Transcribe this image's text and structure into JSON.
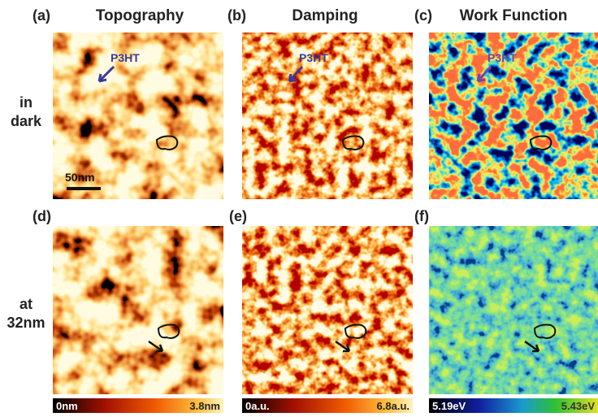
{
  "panels": [
    {
      "label": "(a)",
      "title": "Topography",
      "annotation": "P3HT",
      "scale_bar": "50nm"
    },
    {
      "label": "(b)",
      "title": "Damping",
      "annotation": "P3HT"
    },
    {
      "label": "(c)",
      "title": "Work Function",
      "annotation": "P3HT"
    },
    {
      "label": "(d)"
    },
    {
      "label": "(e)"
    },
    {
      "label": "(f)"
    }
  ],
  "rows": [
    {
      "lines": [
        "in",
        "dark"
      ]
    },
    {
      "lines": [
        "at",
        "32nm"
      ]
    }
  ],
  "colorbars": [
    {
      "min": "0nm",
      "max": "3.8nm"
    },
    {
      "min": "0a.u.",
      "max": "6.8a.u."
    },
    {
      "min": "5.19eV",
      "max": "5.43eV"
    }
  ]
}
